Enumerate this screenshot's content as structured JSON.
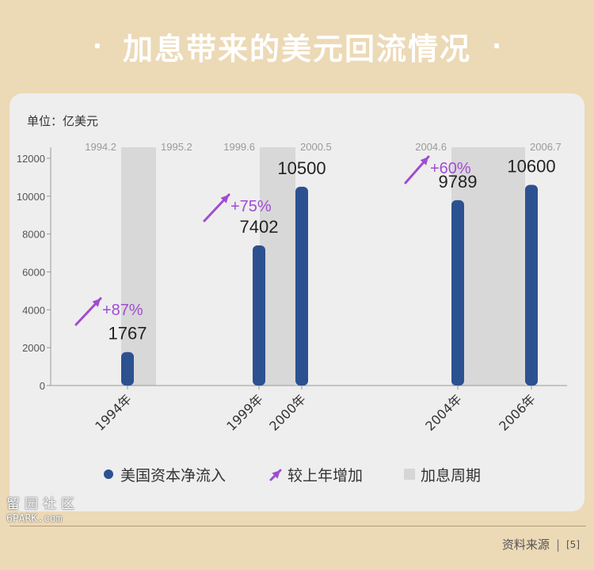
{
  "header": {
    "title": "加息带来的美元回流情况",
    "bullet": "·"
  },
  "chart_data": {
    "type": "bar",
    "unit_label": "单位：亿美元",
    "categories": [
      "1994年",
      "1999年",
      "2000年",
      "2004年",
      "2006年"
    ],
    "series": [
      {
        "name": "美国资本净流入",
        "values": [
          1767,
          7402,
          10500,
          9789,
          10600
        ],
        "color": "#2c5191"
      }
    ],
    "growth_annotations": [
      {
        "label": "+87%",
        "category": "1994年"
      },
      {
        "label": "+75%",
        "category": "1999年"
      },
      {
        "label": "+60%",
        "category": "2004年"
      }
    ],
    "rate_hike_periods": [
      {
        "start": "1994.2",
        "end": "1995.2"
      },
      {
        "start": "1999.6",
        "end": "2000.5"
      },
      {
        "start": "2004.6",
        "end": "2006.7"
      }
    ],
    "yticks": [
      0,
      2000,
      4000,
      6000,
      8000,
      10000,
      12000
    ],
    "ylim": [
      0,
      12600
    ],
    "legend": [
      {
        "label": "美国资本净流入",
        "symbol": "dot",
        "color": "#2c5191"
      },
      {
        "label": "较上年增加",
        "symbol": "arrow",
        "color": "#a04cd1"
      },
      {
        "label": "加息周期",
        "symbol": "square",
        "color": "#d6d6d6"
      }
    ],
    "colors": {
      "bar": "#2c5191",
      "growth": "#a04cd1",
      "shade": "#d8d8d8"
    }
  },
  "watermark": {
    "line1": "留园社区",
    "line2": "6PARK.com"
  },
  "footer": {
    "source_label": "资料来源",
    "separator": "|",
    "ref": "[5]"
  }
}
